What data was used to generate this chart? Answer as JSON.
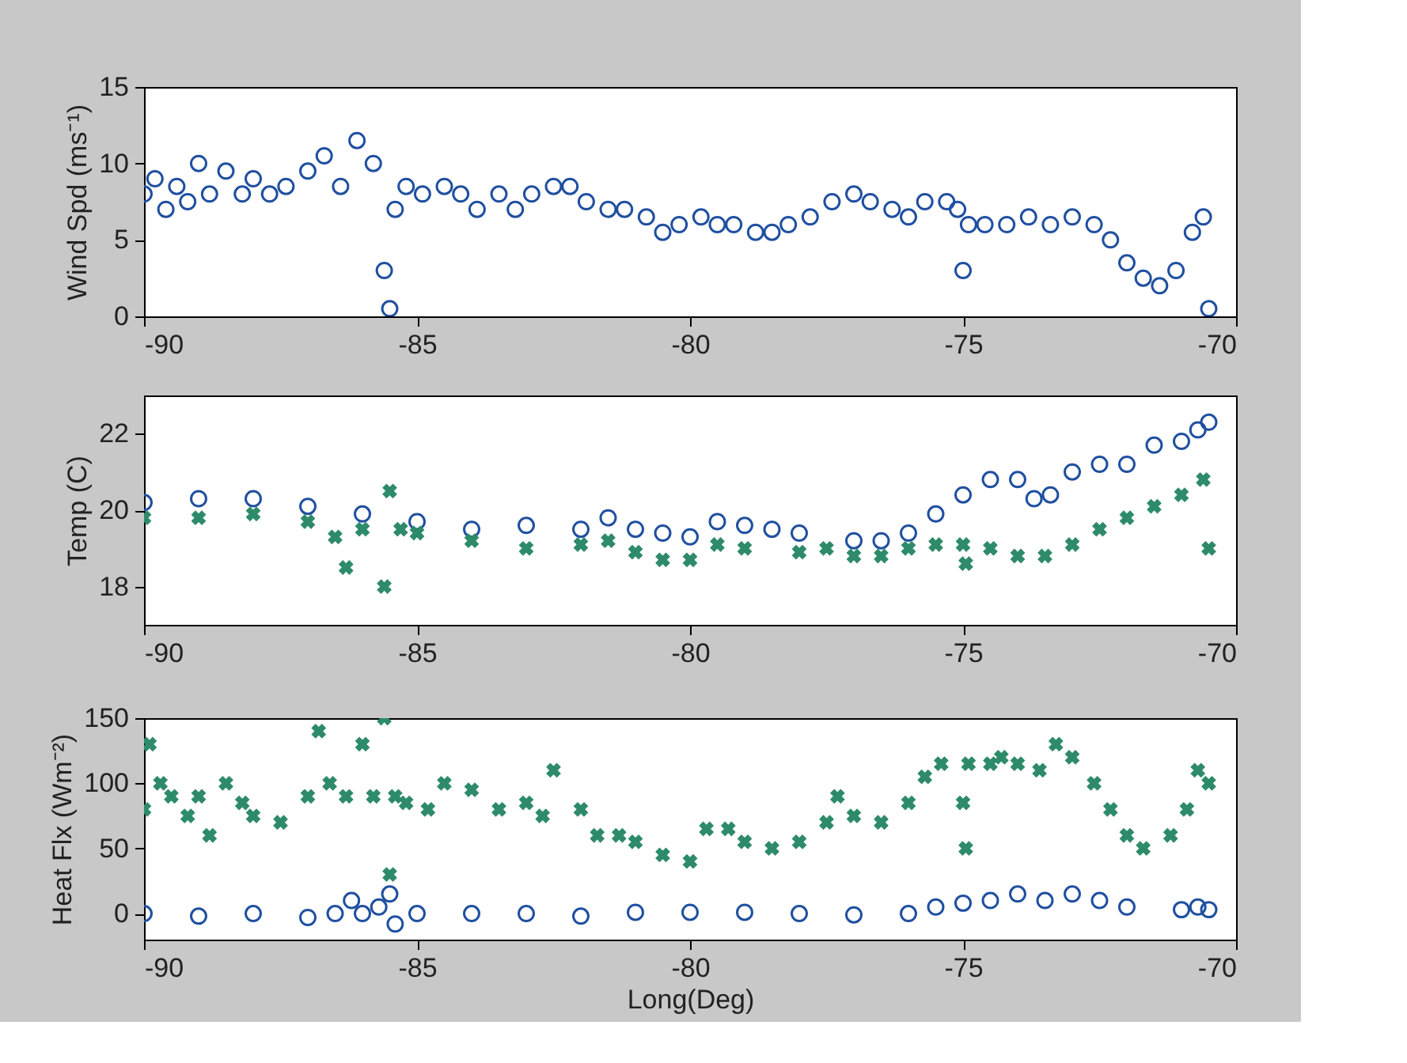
{
  "chart_data": [
    {
      "type": "scatter",
      "ylabel": "Wind Spd (ms⁻¹)",
      "xlim": [
        -90,
        -70
      ],
      "xticks": [
        -90,
        -85,
        -80,
        -75,
        -70
      ],
      "ylim": [
        0,
        15
      ],
      "yticks": [
        0,
        5,
        10,
        15
      ],
      "series": [
        {
          "color": "#1f4fa0",
          "marker": "circle",
          "x": [
            -90,
            -89.8,
            -89.6,
            -89.4,
            -89.2,
            -89,
            -88.8,
            -88.5,
            -88.2,
            -88,
            -87.7,
            -87.4,
            -87,
            -86.7,
            -86.4,
            -86.1,
            -85.8,
            -85.6,
            -85.5,
            -85.4,
            -85.2,
            -84.9,
            -84.5,
            -84.2,
            -83.9,
            -83.5,
            -83.2,
            -82.9,
            -82.5,
            -82.2,
            -81.9,
            -81.5,
            -81.2,
            -80.8,
            -80.5,
            -80.2,
            -79.8,
            -79.5,
            -79.2,
            -78.8,
            -78.5,
            -78.2,
            -77.8,
            -77.4,
            -77,
            -76.7,
            -76.3,
            -76,
            -75.7,
            -75.3,
            -75.1,
            -75,
            -74.9,
            -74.6,
            -74.2,
            -73.8,
            -73.4,
            -73,
            -72.6,
            -72.3,
            -72,
            -71.7,
            -71.4,
            -71.1,
            -70.8,
            -70.6,
            -70.5
          ],
          "values": [
            8,
            9,
            7,
            8.5,
            7.5,
            10,
            8,
            9.5,
            8,
            9,
            8,
            8.5,
            9.5,
            10.5,
            8.5,
            11.5,
            10,
            3,
            0.5,
            7,
            8.5,
            8,
            8.5,
            8,
            7,
            8,
            7,
            8,
            8.5,
            8.5,
            7.5,
            7,
            7,
            6.5,
            5.5,
            6,
            6.5,
            6,
            6,
            5.5,
            5.5,
            6,
            6.5,
            7.5,
            8,
            7.5,
            7,
            6.5,
            7.5,
            7.5,
            7,
            3,
            6,
            6,
            6,
            6.5,
            6,
            6.5,
            6,
            5,
            3.5,
            2.5,
            2,
            3,
            5.5,
            6.5,
            0.5
          ]
        }
      ]
    },
    {
      "type": "scatter",
      "ylabel": "Temp (C)",
      "xlim": [
        -90,
        -70
      ],
      "xticks": [
        -90,
        -85,
        -80,
        -75,
        -70
      ],
      "ylim": [
        17,
        23
      ],
      "yticks": [
        18,
        20,
        22
      ],
      "series": [
        {
          "color": "#1f4fa0",
          "marker": "circle",
          "x": [
            -90,
            -89,
            -88,
            -87,
            -86,
            -85,
            -84,
            -83,
            -82,
            -81.5,
            -81,
            -80.5,
            -80,
            -79.5,
            -79,
            -78.5,
            -78,
            -77,
            -76.5,
            -76,
            -75.5,
            -75,
            -74.5,
            -74,
            -73.7,
            -73.4,
            -73,
            -72.5,
            -72,
            -71.5,
            -71,
            -70.7,
            -70.5
          ],
          "values": [
            20.2,
            20.3,
            20.3,
            20.1,
            19.9,
            19.7,
            19.5,
            19.6,
            19.5,
            19.8,
            19.5,
            19.4,
            19.3,
            19.7,
            19.6,
            19.5,
            19.4,
            19.2,
            19.2,
            19.4,
            19.9,
            20.4,
            20.8,
            20.8,
            20.3,
            20.4,
            21,
            21.2,
            21.2,
            21.7,
            21.8,
            22.1,
            22.3
          ]
        },
        {
          "color": "#2e8b6a",
          "marker": "cross",
          "x": [
            -90,
            -89,
            -88,
            -87,
            -86.5,
            -86.3,
            -86,
            -85.6,
            -85.5,
            -85.3,
            -85,
            -84,
            -83,
            -82,
            -81.5,
            -81,
            -80.5,
            -80,
            -79.5,
            -79,
            -78,
            -77.5,
            -77,
            -76.5,
            -76,
            -75.5,
            -75,
            -74.95,
            -74.5,
            -74,
            -73.5,
            -73,
            -72.5,
            -72,
            -71.5,
            -71,
            -70.6,
            -70.5
          ],
          "values": [
            19.8,
            19.8,
            19.9,
            19.7,
            19.3,
            18.5,
            19.5,
            18,
            20.5,
            19.5,
            19.4,
            19.2,
            19,
            19.1,
            19.2,
            18.9,
            18.7,
            18.7,
            19.1,
            19,
            18.9,
            19,
            18.8,
            18.8,
            19,
            19.1,
            19.1,
            18.6,
            19,
            18.8,
            18.8,
            19.1,
            19.5,
            19.8,
            20.1,
            20.4,
            20.8,
            19
          ]
        }
      ]
    },
    {
      "type": "scatter",
      "xlabel": "Long(Deg)",
      "ylabel": "Heat Flx (Wm⁻²)",
      "xlim": [
        -90,
        -70
      ],
      "xticks": [
        -90,
        -85,
        -80,
        -75,
        -70
      ],
      "ylim": [
        -20,
        150
      ],
      "yticks": [
        0,
        50,
        100,
        150
      ],
      "series": [
        {
          "color": "#2e8b6a",
          "marker": "cross",
          "x": [
            -90,
            -89.9,
            -89.7,
            -89.5,
            -89.2,
            -89,
            -88.8,
            -88.5,
            -88.2,
            -88,
            -87.5,
            -87,
            -86.8,
            -86.6,
            -86.3,
            -86,
            -85.8,
            -85.6,
            -85.5,
            -85.4,
            -85.2,
            -84.8,
            -84.5,
            -84,
            -83.5,
            -83,
            -82.7,
            -82.5,
            -82,
            -81.7,
            -81.3,
            -81,
            -80.5,
            -80,
            -79.7,
            -79.3,
            -79,
            -78.5,
            -78,
            -77.5,
            -77.3,
            -77,
            -76.5,
            -76,
            -75.7,
            -75.4,
            -75,
            -74.95,
            -74.9,
            -74.5,
            -74.3,
            -74,
            -73.6,
            -73.3,
            -73,
            -72.6,
            -72.3,
            -72,
            -71.7,
            -71.2,
            -70.9,
            -70.7,
            -70.5
          ],
          "values": [
            80,
            130,
            100,
            90,
            75,
            90,
            60,
            100,
            85,
            75,
            70,
            90,
            140,
            100,
            90,
            130,
            90,
            150,
            30,
            90,
            85,
            80,
            100,
            95,
            80,
            85,
            75,
            110,
            80,
            60,
            60,
            55,
            45,
            40,
            65,
            65,
            55,
            50,
            55,
            70,
            90,
            75,
            70,
            85,
            105,
            115,
            85,
            50,
            115,
            115,
            120,
            115,
            110,
            130,
            120,
            100,
            80,
            60,
            50,
            60,
            80,
            110,
            100
          ]
        },
        {
          "color": "#1f4fa0",
          "marker": "circle",
          "x": [
            -90,
            -89,
            -88,
            -87,
            -86.5,
            -86.2,
            -86,
            -85.7,
            -85.5,
            -85.4,
            -85,
            -84,
            -83,
            -82,
            -81,
            -80,
            -79,
            -78,
            -77,
            -76,
            -75.5,
            -75,
            -74.5,
            -74,
            -73.5,
            -73,
            -72.5,
            -72,
            -71,
            -70.7,
            -70.5
          ],
          "values": [
            0,
            -2,
            0,
            -3,
            0,
            10,
            0,
            5,
            15,
            -8,
            0,
            0,
            0,
            -2,
            1,
            1,
            1,
            0,
            -1,
            0,
            5,
            8,
            10,
            15,
            10,
            15,
            10,
            5,
            3,
            5,
            3
          ]
        }
      ]
    }
  ]
}
